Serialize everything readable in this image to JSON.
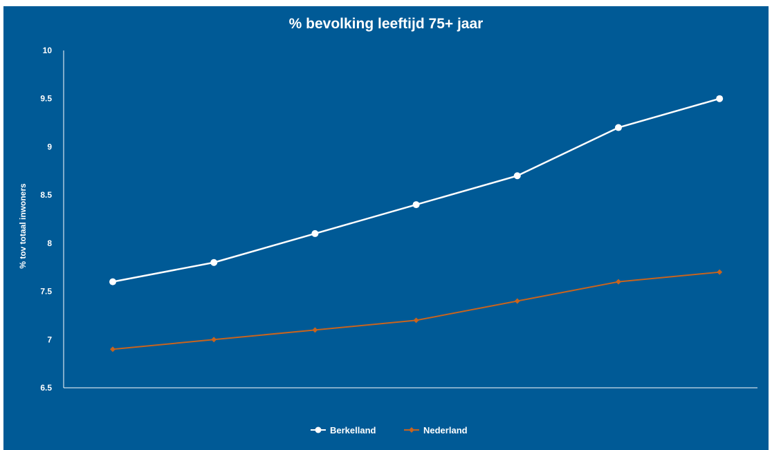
{
  "chart_data": {
    "type": "line",
    "title": "% bevolking leeftijd 75+ jaar",
    "ylabel": "% tov totaal inwoners",
    "xlabel": "",
    "ylim": [
      6.5,
      10
    ],
    "yticks": [
      "10",
      "9.5",
      "9",
      "8.5",
      "8",
      "7.5",
      "7",
      "6.5"
    ],
    "grid": false,
    "legend_position": "bottom-center",
    "background_color": "#005a96",
    "series": [
      {
        "name": "Berkelland",
        "color": "#ffffff",
        "marker": "circle",
        "values": [
          7.6,
          7.8,
          8.1,
          8.4,
          8.7,
          9.2,
          9.5
        ]
      },
      {
        "name": "Nederland",
        "color": "#c8641e",
        "marker": "diamond",
        "values": [
          6.9,
          7.0,
          7.1,
          7.2,
          7.4,
          7.6,
          7.7
        ]
      }
    ]
  }
}
